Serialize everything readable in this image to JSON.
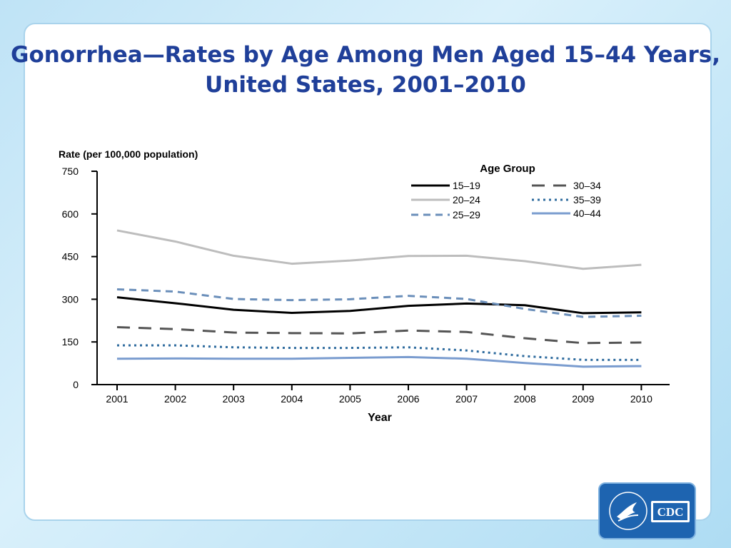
{
  "slide": {
    "title_line1": "Gonorrhea—Rates by Age Among Men Aged 15–44 Years,",
    "title_line2": "United States, 2001–2010"
  },
  "logo": {
    "text": "CDC"
  },
  "chart_data": {
    "type": "line",
    "ylabel": "Rate (per 100,000 population)",
    "xlabel": "Year",
    "ylim": [
      0,
      750
    ],
    "yticks": [
      0,
      150,
      300,
      450,
      600,
      750
    ],
    "legend_title": "Age Group",
    "legend_position": "top-right",
    "grid": false,
    "categories": [
      "2001",
      "2002",
      "2003",
      "2004",
      "2005",
      "2006",
      "2007",
      "2008",
      "2009",
      "2010"
    ],
    "series": [
      {
        "name": "15–19",
        "color": "#000000",
        "dash": "solid",
        "values": [
          307,
          286,
          263,
          252,
          259,
          277,
          285,
          279,
          251,
          254
        ]
      },
      {
        "name": "20–24",
        "color": "#bdbdbd",
        "dash": "solid",
        "values": [
          542,
          503,
          453,
          425,
          436,
          452,
          453,
          434,
          407,
          421
        ]
      },
      {
        "name": "25–29",
        "color": "#6b8fba",
        "dash": "dashed",
        "values": [
          335,
          327,
          301,
          297,
          300,
          312,
          301,
          266,
          238,
          242
        ]
      },
      {
        "name": "30–34",
        "color": "#555555",
        "dash": "longdash",
        "values": [
          202,
          195,
          183,
          181,
          180,
          190,
          185,
          163,
          146,
          148
        ]
      },
      {
        "name": "35–39",
        "color": "#2e6b9e",
        "dash": "dotted",
        "values": [
          138,
          138,
          131,
          129,
          129,
          131,
          120,
          100,
          87,
          87
        ]
      },
      {
        "name": "40–44",
        "color": "#7a9ccf",
        "dash": "solid",
        "values": [
          91,
          92,
          91,
          91,
          94,
          97,
          91,
          76,
          63,
          65
        ]
      }
    ]
  }
}
